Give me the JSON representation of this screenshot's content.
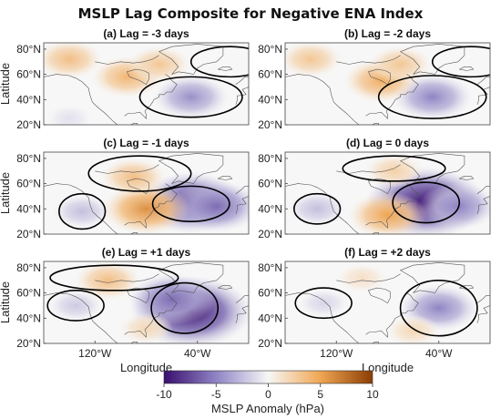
{
  "title": "MSLP Lag Composite for Negative ENA Index",
  "colors": {
    "negative_strong": "#3a0f6e",
    "negative_mid": "#8f84c4",
    "neutral": "#f7f7f7",
    "positive_mid": "#f0a652",
    "positive_strong": "#8a3d05",
    "contour": "#000000",
    "coast": "#555555"
  },
  "chart_data": [
    {
      "type": "heatmap",
      "title": "(a) Lag = -3 days",
      "ylabel": "Latitude",
      "xlabel": "",
      "yticks": [
        "80°N",
        "60°N",
        "40°N",
        "20°N"
      ],
      "xticks": [],
      "lat_range": [
        20,
        85
      ],
      "lon_range": [
        "160°W",
        "0°"
      ],
      "anomalies": [
        {
          "lon": -45,
          "lat": 42,
          "value": -4.5
        },
        {
          "lon": -95,
          "lat": 58,
          "value": 4.0
        },
        {
          "lon": -140,
          "lat": 72,
          "value": 3.5
        },
        {
          "lon": -70,
          "lat": 68,
          "value": 3.0
        },
        {
          "lon": -140,
          "lat": 25,
          "value": -1.0
        }
      ]
    },
    {
      "type": "heatmap",
      "title": "(b) Lag = -2 days",
      "ylabel": "",
      "xlabel": "",
      "yticks": [
        "80°N",
        "60°N",
        "40°N",
        "20°N"
      ],
      "xticks": [],
      "lat_range": [
        20,
        85
      ],
      "lon_range": [
        "160°W",
        "0°"
      ],
      "anomalies": [
        {
          "lon": -45,
          "lat": 42,
          "value": -5.0
        },
        {
          "lon": -85,
          "lat": 55,
          "value": 4.5
        },
        {
          "lon": -140,
          "lat": 72,
          "value": 3.0
        },
        {
          "lon": -70,
          "lat": 68,
          "value": 3.0
        }
      ]
    },
    {
      "type": "heatmap",
      "title": "(c) Lag = -1 days",
      "ylabel": "Latitude",
      "xlabel": "",
      "yticks": [
        "80°N",
        "60°N",
        "40°N",
        "20°N"
      ],
      "xticks": [],
      "lat_range": [
        20,
        85
      ],
      "lon_range": [
        "160°W",
        "0°"
      ],
      "anomalies": [
        {
          "lon": -45,
          "lat": 45,
          "value": -8.0
        },
        {
          "lon": -25,
          "lat": 42,
          "value": -6.0
        },
        {
          "lon": -80,
          "lat": 40,
          "value": 6.0
        },
        {
          "lon": -90,
          "lat": 65,
          "value": 3.5
        },
        {
          "lon": -130,
          "lat": 38,
          "value": -2.5
        }
      ]
    },
    {
      "type": "heatmap",
      "title": "(d) Lag = 0 days",
      "ylabel": "",
      "xlabel": "",
      "yticks": [
        "80°N",
        "60°N",
        "40°N",
        "20°N"
      ],
      "xticks": [],
      "lat_range": [
        20,
        85
      ],
      "lon_range": [
        "160°W",
        "0°"
      ],
      "anomalies": [
        {
          "lon": -50,
          "lat": 45,
          "value": -10.0
        },
        {
          "lon": -25,
          "lat": 42,
          "value": -5.0
        },
        {
          "lon": -80,
          "lat": 35,
          "value": 5.0
        },
        {
          "lon": -75,
          "lat": 70,
          "value": 2.5
        },
        {
          "lon": -135,
          "lat": 40,
          "value": -2.5
        }
      ]
    },
    {
      "type": "heatmap",
      "title": "(e) Lag = +1 days",
      "ylabel": "Latitude",
      "xlabel": "Longitude",
      "yticks": [
        "80°N",
        "60°N",
        "40°N",
        "20°N"
      ],
      "xticks": [
        "120°W",
        "40°W"
      ],
      "lat_range": [
        20,
        85
      ],
      "lon_range": [
        "160°W",
        "0°"
      ],
      "anomalies": [
        {
          "lon": -45,
          "lat": 45,
          "value": -10.0
        },
        {
          "lon": -60,
          "lat": 55,
          "value": -6.0
        },
        {
          "lon": -110,
          "lat": 70,
          "value": 3.5
        },
        {
          "lon": -135,
          "lat": 50,
          "value": -2.0
        },
        {
          "lon": -80,
          "lat": 32,
          "value": 2.0
        }
      ]
    },
    {
      "type": "heatmap",
      "title": "(f) Lag = +2 days",
      "ylabel": "",
      "xlabel": "Longitude",
      "yticks": [
        "80°N",
        "60°N",
        "40°N",
        "20°N"
      ],
      "xticks": [
        "120°W",
        "40°W"
      ],
      "lat_range": [
        20,
        85
      ],
      "lon_range": [
        "160°W",
        "0°"
      ],
      "anomalies": [
        {
          "lon": -40,
          "lat": 48,
          "value": -5.0
        },
        {
          "lon": -130,
          "lat": 52,
          "value": -1.5
        },
        {
          "lon": -100,
          "lat": 72,
          "value": 1.5
        },
        {
          "lon": -60,
          "lat": 30,
          "value": 2.0
        }
      ]
    }
  ],
  "colorbar": {
    "label": "MSLP Anomaly (hPa)",
    "min": -10,
    "max": 10,
    "ticks": [
      "-10",
      "-5",
      "0",
      "5",
      "10"
    ]
  }
}
